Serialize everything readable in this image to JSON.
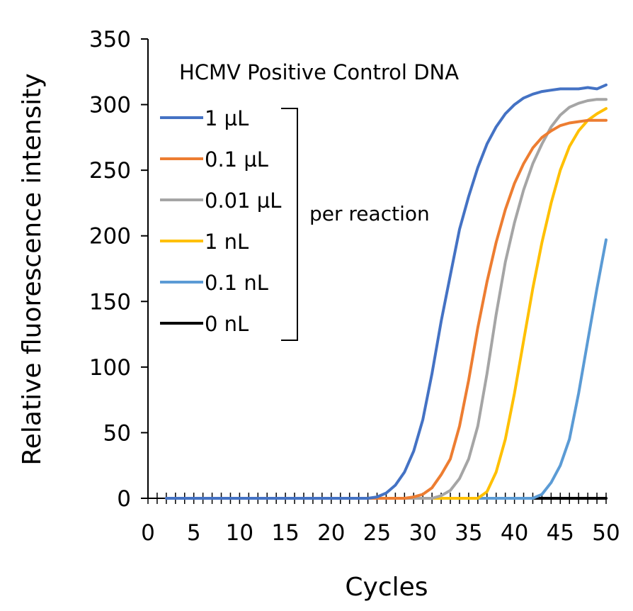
{
  "chart_data": {
    "type": "line",
    "title": "HCMV Positive Control DNA",
    "xlabel": "Cycles",
    "ylabel": "Relative fluorescence intensity",
    "xlim": [
      0,
      50
    ],
    "ylim": [
      0,
      350
    ],
    "xticks": [
      0,
      5,
      10,
      15,
      20,
      25,
      30,
      35,
      40,
      45,
      50
    ],
    "yticks": [
      0,
      50,
      100,
      150,
      200,
      250,
      300,
      350
    ],
    "grid": false,
    "legend_position": "top-left",
    "bracket_label": "per reaction",
    "series": [
      {
        "name": "1 µL",
        "color": "#4472C4",
        "points": [
          [
            2,
            0
          ],
          [
            24,
            0
          ],
          [
            25,
            1
          ],
          [
            26,
            4
          ],
          [
            27,
            10
          ],
          [
            28,
            20
          ],
          [
            29,
            36
          ],
          [
            30,
            60
          ],
          [
            31,
            95
          ],
          [
            32,
            135
          ],
          [
            33,
            170
          ],
          [
            34,
            205
          ],
          [
            35,
            230
          ],
          [
            36,
            252
          ],
          [
            37,
            270
          ],
          [
            38,
            283
          ],
          [
            39,
            293
          ],
          [
            40,
            300
          ],
          [
            41,
            305
          ],
          [
            42,
            308
          ],
          [
            43,
            310
          ],
          [
            44,
            311
          ],
          [
            45,
            312
          ],
          [
            46,
            312
          ],
          [
            47,
            312
          ],
          [
            48,
            313
          ],
          [
            49,
            312
          ],
          [
            50,
            315
          ]
        ]
      },
      {
        "name": "0.1 µL",
        "color": "#ED7D31",
        "points": [
          [
            2,
            0
          ],
          [
            28,
            0
          ],
          [
            29,
            1
          ],
          [
            30,
            3
          ],
          [
            31,
            8
          ],
          [
            32,
            18
          ],
          [
            33,
            30
          ],
          [
            34,
            55
          ],
          [
            35,
            90
          ],
          [
            36,
            130
          ],
          [
            37,
            165
          ],
          [
            38,
            195
          ],
          [
            39,
            220
          ],
          [
            40,
            240
          ],
          [
            41,
            255
          ],
          [
            42,
            267
          ],
          [
            43,
            275
          ],
          [
            44,
            280
          ],
          [
            45,
            284
          ],
          [
            46,
            286
          ],
          [
            47,
            287
          ],
          [
            48,
            288
          ],
          [
            49,
            288
          ],
          [
            50,
            288
          ]
        ]
      },
      {
        "name": "0.01 µL",
        "color": "#A5A5A5",
        "points": [
          [
            2,
            0
          ],
          [
            31,
            0
          ],
          [
            32,
            2
          ],
          [
            33,
            6
          ],
          [
            34,
            15
          ],
          [
            35,
            30
          ],
          [
            36,
            55
          ],
          [
            37,
            95
          ],
          [
            38,
            140
          ],
          [
            39,
            180
          ],
          [
            40,
            210
          ],
          [
            41,
            235
          ],
          [
            42,
            255
          ],
          [
            43,
            270
          ],
          [
            44,
            283
          ],
          [
            45,
            292
          ],
          [
            46,
            298
          ],
          [
            47,
            301
          ],
          [
            48,
            303
          ],
          [
            49,
            304
          ],
          [
            50,
            304
          ]
        ]
      },
      {
        "name": "1 nL",
        "color": "#FFC000",
        "points": [
          [
            2,
            0
          ],
          [
            36,
            0
          ],
          [
            37,
            5
          ],
          [
            38,
            20
          ],
          [
            39,
            45
          ],
          [
            40,
            80
          ],
          [
            41,
            120
          ],
          [
            42,
            160
          ],
          [
            43,
            195
          ],
          [
            44,
            225
          ],
          [
            45,
            250
          ],
          [
            46,
            268
          ],
          [
            47,
            280
          ],
          [
            48,
            288
          ],
          [
            49,
            293
          ],
          [
            50,
            297
          ]
        ]
      },
      {
        "name": "0.1 nL",
        "color": "#5B9BD5",
        "points": [
          [
            2,
            0
          ],
          [
            42,
            0
          ],
          [
            43,
            3
          ],
          [
            44,
            12
          ],
          [
            45,
            25
          ],
          [
            46,
            45
          ],
          [
            47,
            80
          ],
          [
            48,
            120
          ],
          [
            49,
            160
          ],
          [
            50,
            197
          ]
        ]
      },
      {
        "name": "0 nL",
        "color": "#000000",
        "points": [
          [
            2,
            0
          ],
          [
            50,
            0
          ]
        ]
      }
    ]
  }
}
